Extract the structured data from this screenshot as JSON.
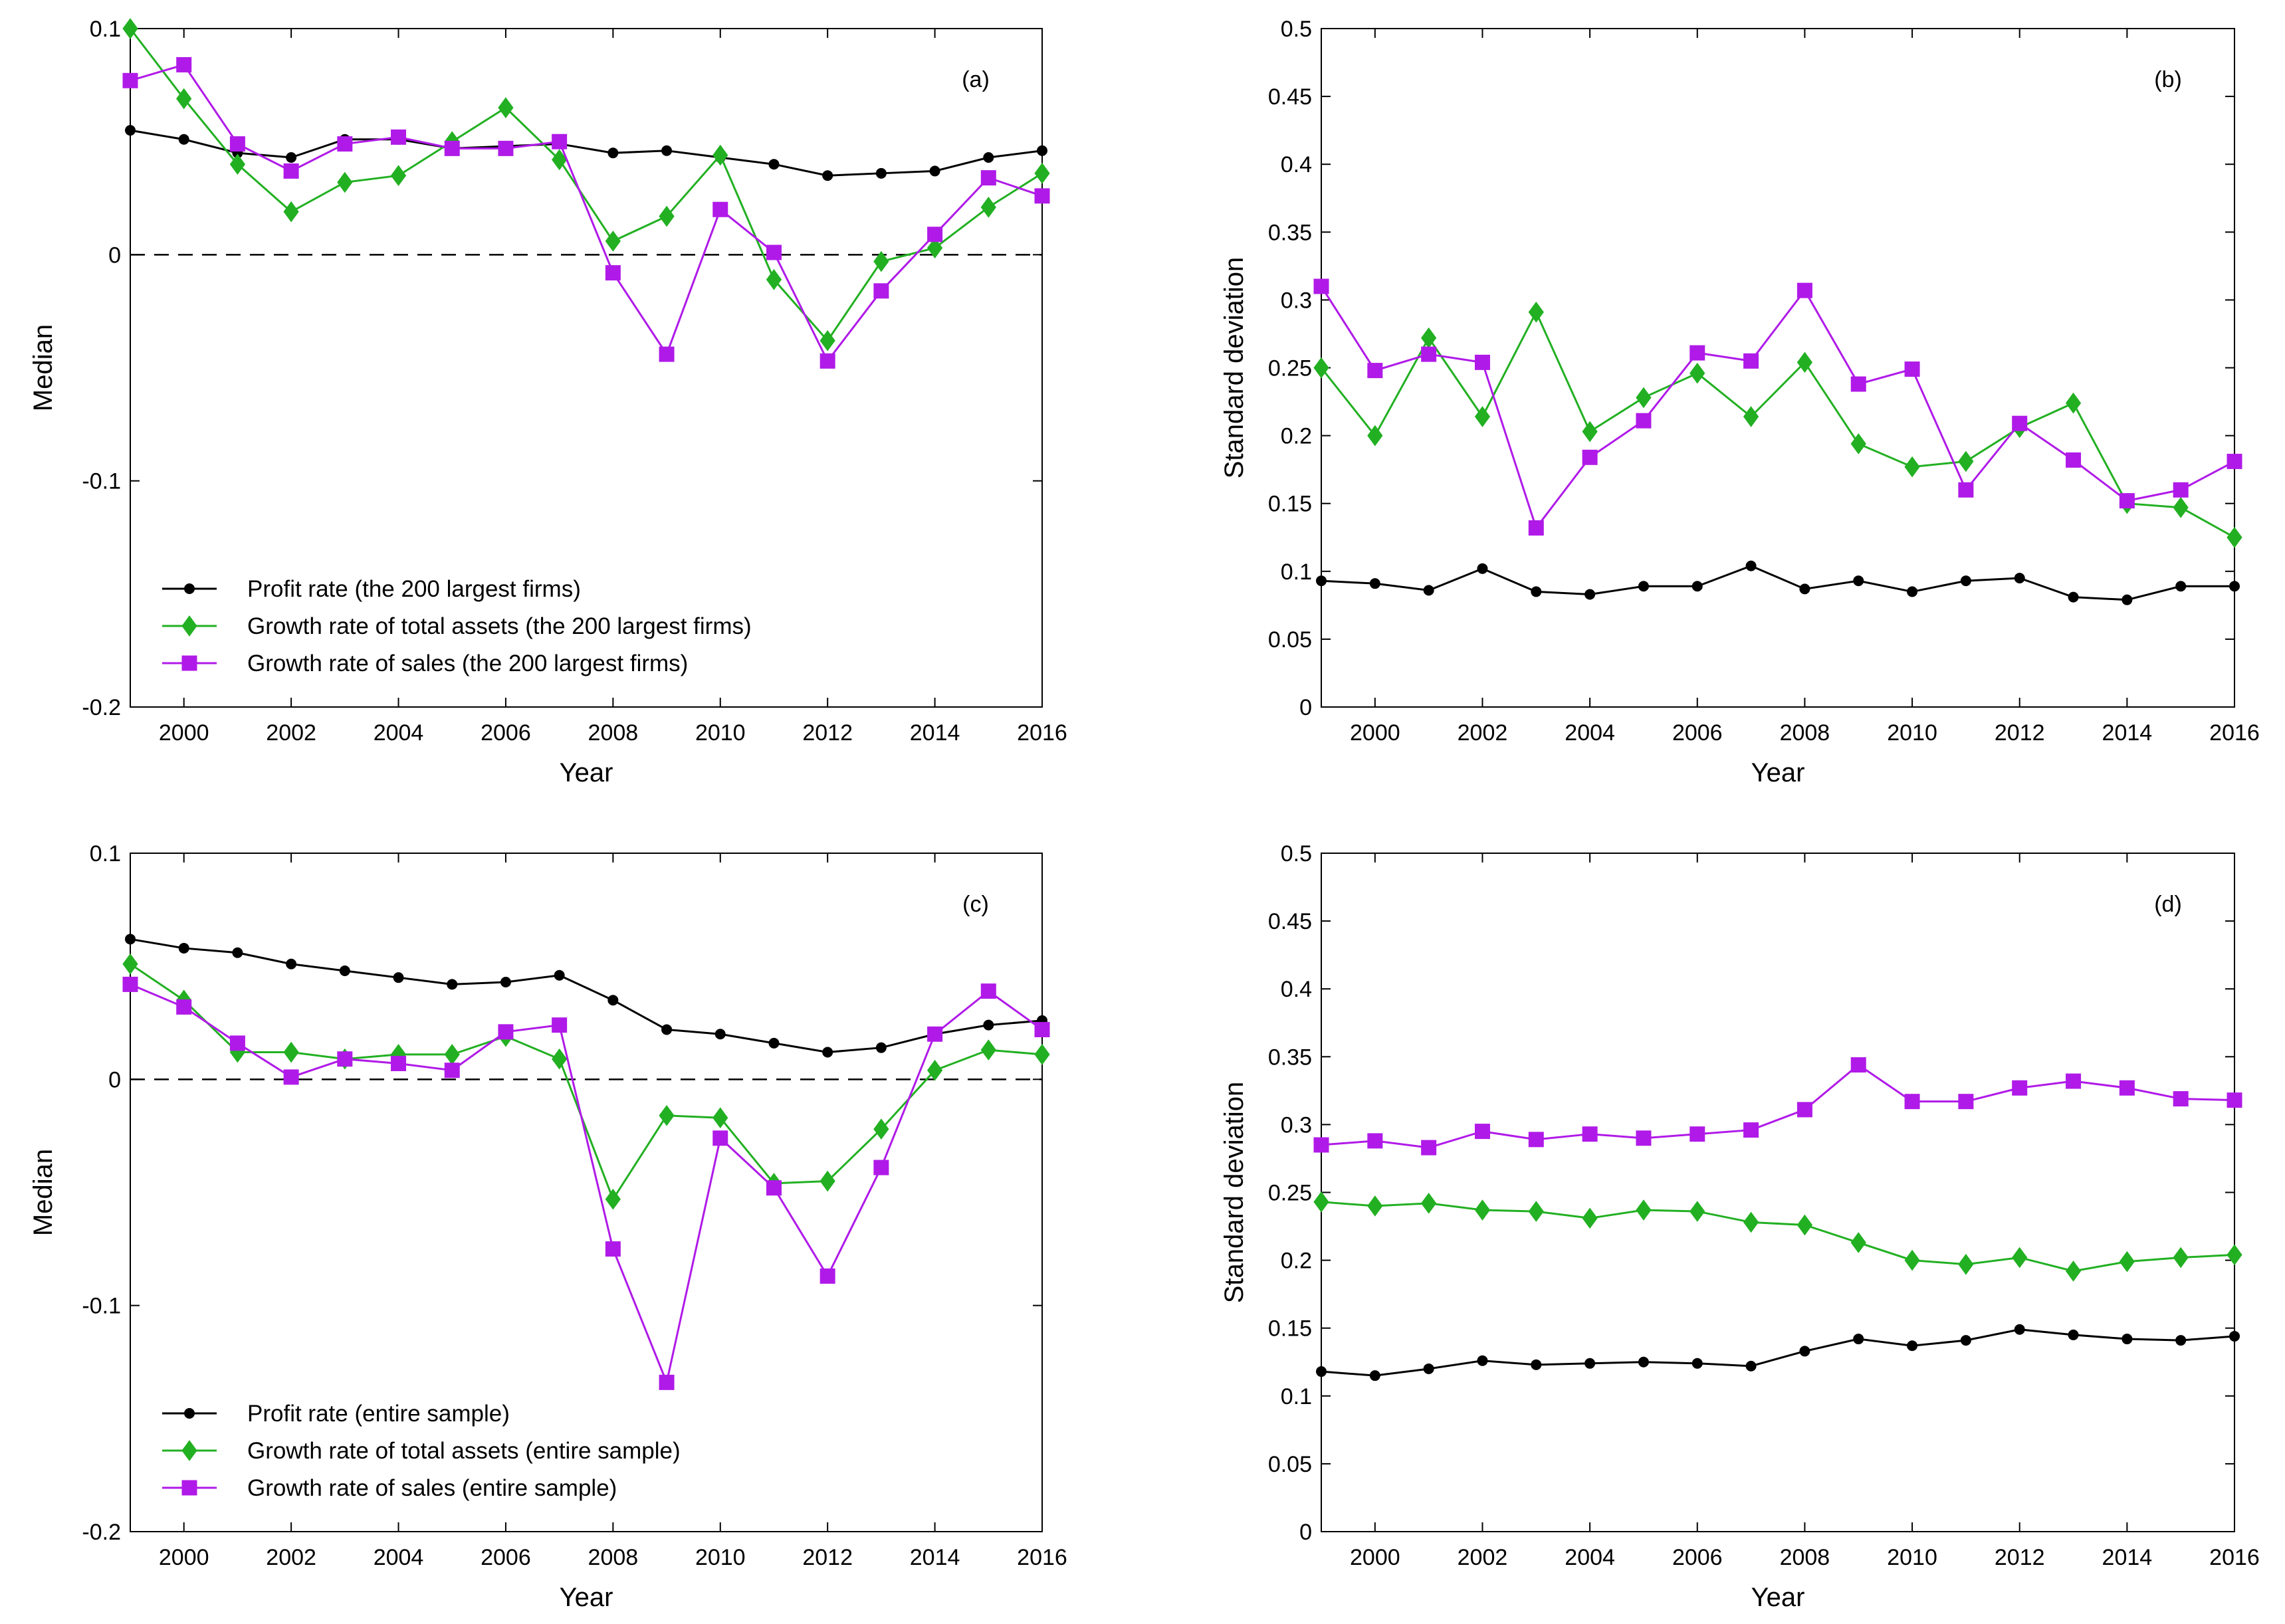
{
  "chart_data": [
    {
      "panel": "(a)",
      "type": "line",
      "xlabel": "Year",
      "ylabel": "Median",
      "xlim": [
        1999,
        2016
      ],
      "ylim": [
        -0.2,
        0.1
      ],
      "xticks": [
        2000,
        2002,
        2004,
        2006,
        2008,
        2010,
        2012,
        2014,
        2016
      ],
      "xtick_labels": [
        "2000",
        "2002",
        "2004",
        "2006",
        "2008",
        "2010",
        "2012",
        "2014",
        "2016"
      ],
      "yticks": [
        -0.2,
        -0.1,
        0,
        0.1
      ],
      "ytick_labels": [
        "-0.2",
        "-0.1",
        "0",
        "0.1"
      ],
      "zero_line": true,
      "legend_position": "bottom-left",
      "x": [
        1999,
        2000,
        2001,
        2002,
        2003,
        2004,
        2005,
        2006,
        2007,
        2008,
        2009,
        2010,
        2011,
        2012,
        2013,
        2014,
        2015,
        2016
      ],
      "series": [
        {
          "name": "Profit rate (the 200 largest firms)",
          "color": "#000000",
          "marker": "circle",
          "values": [
            0.055,
            0.051,
            0.045,
            0.043,
            0.051,
            0.051,
            0.047,
            0.048,
            0.049,
            0.045,
            0.046,
            0.043,
            0.04,
            0.035,
            0.036,
            0.037,
            0.043,
            0.046
          ]
        },
        {
          "name": "Growth rate of total assets (the 200 largest firms)",
          "color": "#22b022",
          "marker": "diamond",
          "values": [
            0.1,
            0.069,
            0.04,
            0.019,
            0.032,
            0.035,
            0.05,
            0.065,
            0.042,
            0.006,
            0.017,
            0.044,
            -0.011,
            -0.038,
            -0.003,
            0.003,
            0.021,
            0.036
          ]
        },
        {
          "name": "Growth rate of sales (the 200 largest firms)",
          "color": "#b01ae8",
          "marker": "square",
          "values": [
            0.077,
            0.084,
            0.049,
            0.037,
            0.049,
            0.052,
            0.047,
            0.047,
            0.05,
            -0.008,
            -0.044,
            0.02,
            0.001,
            -0.047,
            -0.016,
            0.009,
            0.034,
            0.026
          ]
        }
      ]
    },
    {
      "panel": "(b)",
      "type": "line",
      "xlabel": "Year",
      "ylabel": "Standard deviation",
      "xlim": [
        1999,
        2016
      ],
      "ylim": [
        0,
        0.5
      ],
      "xticks": [
        2000,
        2002,
        2004,
        2006,
        2008,
        2010,
        2012,
        2014,
        2016
      ],
      "xtick_labels": [
        "2000",
        "2002",
        "2004",
        "2006",
        "2008",
        "2010",
        "2012",
        "2014",
        "2016"
      ],
      "yticks": [
        0,
        0.05,
        0.1,
        0.15,
        0.2,
        0.25,
        0.3,
        0.35,
        0.4,
        0.45,
        0.5
      ],
      "ytick_labels": [
        "0",
        "0.05",
        "0.1",
        "0.15",
        "0.2",
        "0.25",
        "0.3",
        "0.35",
        "0.4",
        "0.45",
        "0.5"
      ],
      "zero_line": false,
      "x": [
        1999,
        2000,
        2001,
        2002,
        2003,
        2004,
        2005,
        2006,
        2007,
        2008,
        2009,
        2010,
        2011,
        2012,
        2013,
        2014,
        2015,
        2016
      ],
      "series": [
        {
          "name": "Profit rate (the 200 largest firms)",
          "color": "#000000",
          "marker": "circle",
          "values": [
            0.093,
            0.091,
            0.086,
            0.102,
            0.085,
            0.083,
            0.089,
            0.089,
            0.104,
            0.087,
            0.093,
            0.085,
            0.093,
            0.095,
            0.081,
            0.079,
            0.089,
            0.089
          ]
        },
        {
          "name": "Growth rate of total assets (the 200 largest firms)",
          "color": "#22b022",
          "marker": "diamond",
          "values": [
            0.25,
            0.2,
            0.272,
            0.214,
            0.291,
            0.203,
            0.228,
            0.246,
            0.214,
            0.254,
            0.194,
            0.177,
            0.181,
            0.206,
            0.224,
            0.15,
            0.147,
            0.125
          ]
        },
        {
          "name": "Growth rate of sales (the 200 largest firms)",
          "color": "#b01ae8",
          "marker": "square",
          "values": [
            0.31,
            0.248,
            0.26,
            0.254,
            0.132,
            0.184,
            0.211,
            0.261,
            0.255,
            0.307,
            0.238,
            0.249,
            0.16,
            0.209,
            0.182,
            0.152,
            0.16,
            0.181
          ]
        }
      ]
    },
    {
      "panel": "(c)",
      "type": "line",
      "xlabel": "Year",
      "ylabel": "Median",
      "xlim": [
        1999,
        2016
      ],
      "ylim": [
        -0.2,
        0.1
      ],
      "xticks": [
        2000,
        2002,
        2004,
        2006,
        2008,
        2010,
        2012,
        2014,
        2016
      ],
      "xtick_labels": [
        "2000",
        "2002",
        "2004",
        "2006",
        "2008",
        "2010",
        "2012",
        "2014",
        "2016"
      ],
      "yticks": [
        -0.2,
        -0.1,
        0,
        0.1
      ],
      "ytick_labels": [
        "-0.2",
        "-0.1",
        "0",
        "0.1"
      ],
      "zero_line": true,
      "legend_position": "bottom-left",
      "x": [
        1999,
        2000,
        2001,
        2002,
        2003,
        2004,
        2005,
        2006,
        2007,
        2008,
        2009,
        2010,
        2011,
        2012,
        2013,
        2014,
        2015,
        2016
      ],
      "series": [
        {
          "name": "Profit rate (entire sample)",
          "color": "#000000",
          "marker": "circle",
          "values": [
            0.062,
            0.058,
            0.056,
            0.051,
            0.048,
            0.045,
            0.042,
            0.043,
            0.046,
            0.035,
            0.022,
            0.02,
            0.016,
            0.012,
            0.014,
            0.02,
            0.024,
            0.026
          ]
        },
        {
          "name": "Growth rate of total assets (entire sample)",
          "color": "#22b022",
          "marker": "diamond",
          "values": [
            0.051,
            0.035,
            0.012,
            0.012,
            0.009,
            0.011,
            0.011,
            0.019,
            0.009,
            -0.053,
            -0.016,
            -0.017,
            -0.046,
            -0.045,
            -0.022,
            0.004,
            0.013,
            0.011
          ]
        },
        {
          "name": "Growth rate of sales (entire sample)",
          "color": "#b01ae8",
          "marker": "square",
          "values": [
            0.042,
            0.032,
            0.016,
            0.001,
            0.009,
            0.007,
            0.004,
            0.021,
            0.024,
            -0.075,
            -0.134,
            -0.026,
            -0.048,
            -0.087,
            -0.039,
            0.02,
            0.039,
            0.022
          ]
        }
      ]
    },
    {
      "panel": "(d)",
      "type": "line",
      "xlabel": "Year",
      "ylabel": "Standard deviation",
      "xlim": [
        1999,
        2016
      ],
      "ylim": [
        0,
        0.5
      ],
      "xticks": [
        2000,
        2002,
        2004,
        2006,
        2008,
        2010,
        2012,
        2014,
        2016
      ],
      "xtick_labels": [
        "2000",
        "2002",
        "2004",
        "2006",
        "2008",
        "2010",
        "2012",
        "2014",
        "2016"
      ],
      "yticks": [
        0,
        0.05,
        0.1,
        0.15,
        0.2,
        0.25,
        0.3,
        0.35,
        0.4,
        0.45,
        0.5
      ],
      "ytick_labels": [
        "0",
        "0.05",
        "0.1",
        "0.15",
        "0.2",
        "0.25",
        "0.3",
        "0.35",
        "0.4",
        "0.45",
        "0.5"
      ],
      "zero_line": false,
      "x": [
        1999,
        2000,
        2001,
        2002,
        2003,
        2004,
        2005,
        2006,
        2007,
        2008,
        2009,
        2010,
        2011,
        2012,
        2013,
        2014,
        2015,
        2016
      ],
      "series": [
        {
          "name": "Profit rate (entire sample)",
          "color": "#000000",
          "marker": "circle",
          "values": [
            0.118,
            0.115,
            0.12,
            0.126,
            0.123,
            0.124,
            0.125,
            0.124,
            0.122,
            0.133,
            0.142,
            0.137,
            0.141,
            0.149,
            0.145,
            0.142,
            0.141,
            0.144
          ]
        },
        {
          "name": "Growth rate of total assets (entire sample)",
          "color": "#22b022",
          "marker": "diamond",
          "values": [
            0.243,
            0.24,
            0.242,
            0.237,
            0.236,
            0.231,
            0.237,
            0.236,
            0.228,
            0.226,
            0.213,
            0.2,
            0.197,
            0.202,
            0.192,
            0.199,
            0.202,
            0.204
          ]
        },
        {
          "name": "Growth rate of sales (entire sample)",
          "color": "#b01ae8",
          "marker": "square",
          "values": [
            0.285,
            0.288,
            0.283,
            0.295,
            0.289,
            0.293,
            0.29,
            0.293,
            0.296,
            0.311,
            0.344,
            0.317,
            0.317,
            0.327,
            0.332,
            0.327,
            0.319,
            0.318
          ]
        }
      ]
    }
  ]
}
